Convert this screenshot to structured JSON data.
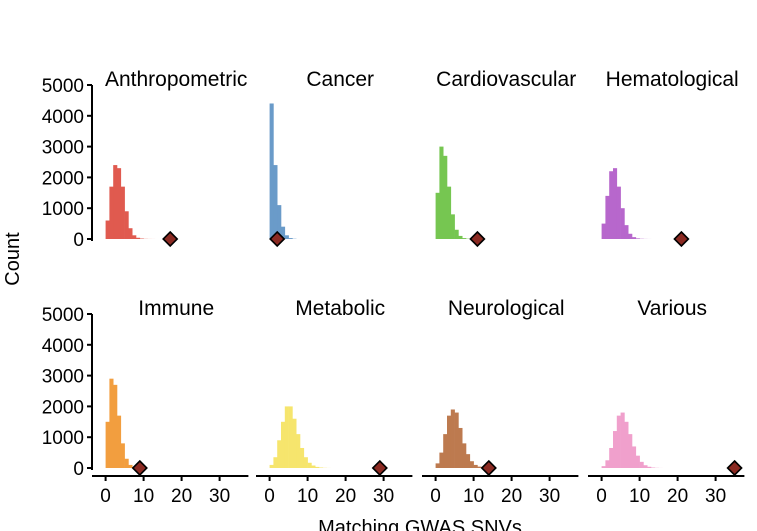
{
  "chart_data": {
    "type": "bar",
    "ylabel": "Count",
    "xlabel": "Matching GWAS SNVs",
    "ylim": [
      0,
      5000
    ],
    "y_ticks": [
      0,
      1000,
      2000,
      3000,
      4000,
      5000
    ],
    "y_tick_labels": [
      "0",
      "1000",
      "2000",
      "3000",
      "4000",
      "5000"
    ],
    "xlim": [
      -2,
      36
    ],
    "x_ticks": [
      0,
      10,
      20,
      30
    ],
    "x_tick_labels": [
      "0",
      "10",
      "20",
      "30"
    ],
    "grid": false,
    "legend": "none",
    "bin_width": 1,
    "observed_marker": {
      "shape": "diamond",
      "color": "#8b2a22"
    },
    "panels": [
      {
        "title": "Anthropometric",
        "color": "#e05a4f",
        "observed": 17,
        "bins": [
          0,
          1,
          2,
          3,
          4,
          5,
          6,
          7,
          8,
          9,
          10,
          11,
          12
        ],
        "counts": [
          600,
          1700,
          2400,
          2300,
          1700,
          900,
          350,
          120,
          40,
          15,
          5,
          2,
          1
        ]
      },
      {
        "title": "Cancer",
        "color": "#6a9bc9",
        "observed": 2,
        "bins": [
          0,
          1,
          2,
          3,
          4,
          5,
          6
        ],
        "counts": [
          4400,
          2400,
          1100,
          400,
          120,
          30,
          8
        ]
      },
      {
        "title": "Cardiovascular",
        "color": "#76c651",
        "observed": 11,
        "bins": [
          0,
          1,
          2,
          3,
          4,
          5,
          6,
          7,
          8,
          9
        ],
        "counts": [
          1500,
          3000,
          2700,
          1700,
          800,
          300,
          100,
          30,
          10,
          3
        ]
      },
      {
        "title": "Hematological",
        "color": "#b767cc",
        "observed": 21,
        "bins": [
          0,
          1,
          2,
          3,
          4,
          5,
          6,
          7,
          8,
          9,
          10,
          11,
          12
        ],
        "counts": [
          500,
          1400,
          2200,
          2300,
          1700,
          1000,
          450,
          170,
          60,
          20,
          8,
          3,
          1
        ]
      },
      {
        "title": "Immune",
        "color": "#f29e3f",
        "observed": 9,
        "bins": [
          0,
          1,
          2,
          3,
          4,
          5,
          6,
          7,
          8
        ],
        "counts": [
          1500,
          2900,
          2700,
          1700,
          800,
          300,
          100,
          30,
          8
        ]
      },
      {
        "title": "Metabolic",
        "color": "#f6e56d",
        "observed": 29,
        "bins": [
          0,
          1,
          2,
          3,
          4,
          5,
          6,
          7,
          8,
          9,
          10,
          11,
          12,
          13,
          14,
          15
        ],
        "counts": [
          100,
          350,
          900,
          1500,
          2000,
          2000,
          1600,
          1100,
          650,
          350,
          170,
          80,
          35,
          15,
          6,
          2
        ]
      },
      {
        "title": "Neurological",
        "color": "#bd7a4f",
        "observed": 14,
        "bins": [
          0,
          1,
          2,
          3,
          4,
          5,
          6,
          7,
          8,
          9,
          10,
          11,
          12,
          13,
          14
        ],
        "counts": [
          150,
          500,
          1100,
          1700,
          1900,
          1800,
          1300,
          800,
          450,
          220,
          100,
          45,
          18,
          7,
          2
        ]
      },
      {
        "title": "Various",
        "color": "#f0a0cc",
        "observed": 35,
        "bins": [
          0,
          1,
          2,
          3,
          4,
          5,
          6,
          7,
          8,
          9,
          10,
          11,
          12,
          13,
          14,
          15
        ],
        "counts": [
          60,
          250,
          650,
          1200,
          1700,
          1800,
          1500,
          1100,
          700,
          400,
          200,
          90,
          40,
          15,
          6,
          2
        ]
      }
    ]
  }
}
